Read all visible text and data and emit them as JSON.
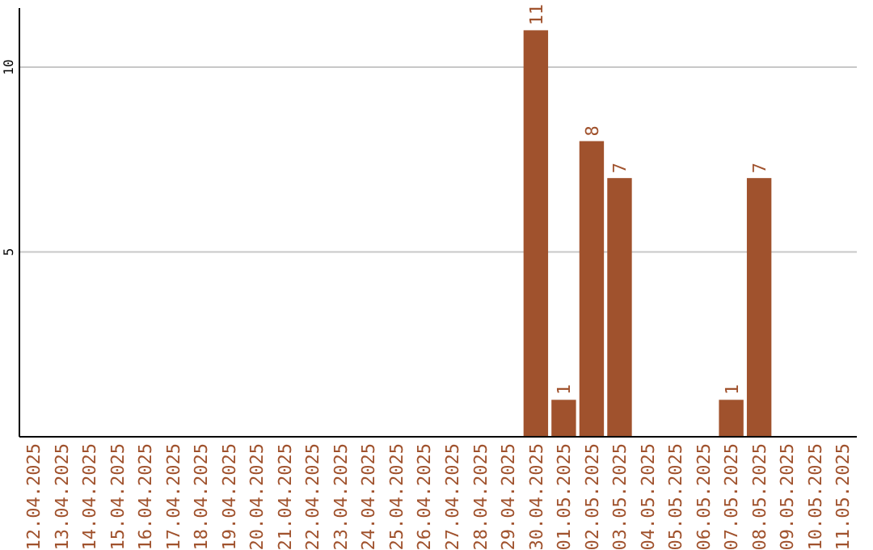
{
  "chart_data": {
    "type": "bar",
    "categories": [
      "12.04.2025",
      "13.04.2025",
      "14.04.2025",
      "15.04.2025",
      "16.04.2025",
      "17.04.2025",
      "18.04.2025",
      "19.04.2025",
      "20.04.2025",
      "21.04.2025",
      "22.04.2025",
      "23.04.2025",
      "24.04.2025",
      "25.04.2025",
      "26.04.2025",
      "27.04.2025",
      "28.04.2025",
      "29.04.2025",
      "30.04.2025",
      "01.05.2025",
      "02.05.2025",
      "03.05.2025",
      "04.05.2025",
      "05.05.2025",
      "06.05.2025",
      "07.05.2025",
      "08.05.2025",
      "09.05.2025",
      "10.05.2025",
      "11.05.2025"
    ],
    "values": [
      null,
      null,
      null,
      null,
      null,
      null,
      null,
      null,
      null,
      null,
      null,
      null,
      null,
      null,
      null,
      null,
      null,
      null,
      11,
      1,
      8,
      7,
      null,
      null,
      null,
      1,
      7,
      null,
      null,
      null
    ],
    "color": "#a0522d",
    "ylim": [
      0,
      11.6
    ],
    "yticks": [
      5,
      10
    ],
    "grid": "y",
    "data_labels": true
  }
}
